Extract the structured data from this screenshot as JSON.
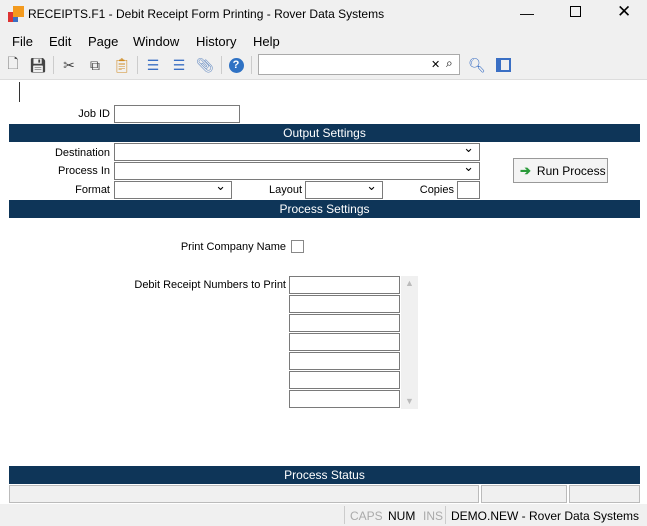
{
  "window": {
    "title": "RECEIPTS.F1 - Debit Receipt Form Printing - Rover Data Systems"
  },
  "menu": [
    "File",
    "Edit",
    "Page",
    "Window",
    "History",
    "Help"
  ],
  "toolbar": {
    "icons": [
      "new-document-icon",
      "save-icon",
      "cut-icon",
      "copy-icon",
      "paste-icon",
      "insert-row-icon",
      "delete-row-icon",
      "attachment-icon",
      "help-icon"
    ],
    "search_value": ""
  },
  "form": {
    "job_id_label": "Job ID",
    "job_id": "",
    "output_settings": "Output Settings",
    "destination_label": "Destination",
    "destination": "",
    "process_in_label": "Process In",
    "process_in": "",
    "format_label": "Format",
    "format": "",
    "layout_label": "Layout",
    "layout": "",
    "copies_label": "Copies",
    "copies": "",
    "run_process": "Run Process",
    "process_settings": "Process Settings",
    "print_company_label": "Print Company Name",
    "print_company": false,
    "debit_numbers_label": "Debit Receipt Numbers to Print",
    "debit_numbers": [
      "",
      "",
      "",
      "",
      "",
      "",
      ""
    ],
    "process_status": "Process Status"
  },
  "statusbar": {
    "caps": "CAPS",
    "num": "NUM",
    "ins": "INS",
    "account": "DEMO.NEW - Rover Data Systems"
  },
  "colors": {
    "section_bar": "#0e3558",
    "run_arrow": "#2a9a3a"
  }
}
